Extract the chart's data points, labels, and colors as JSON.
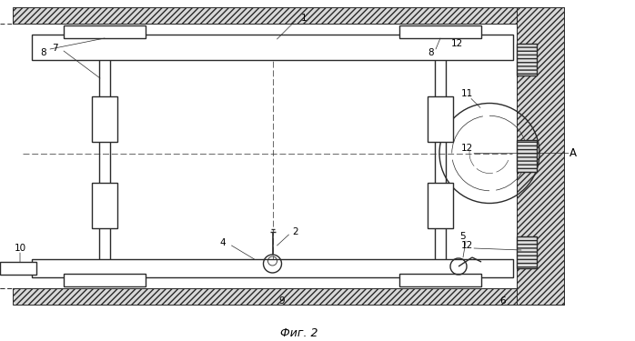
{
  "title": "Фиг. 2",
  "bg_color": "#ffffff",
  "line_color": "#2a2a2a",
  "figure_size": [
    6.98,
    3.75
  ],
  "dpi": 100
}
